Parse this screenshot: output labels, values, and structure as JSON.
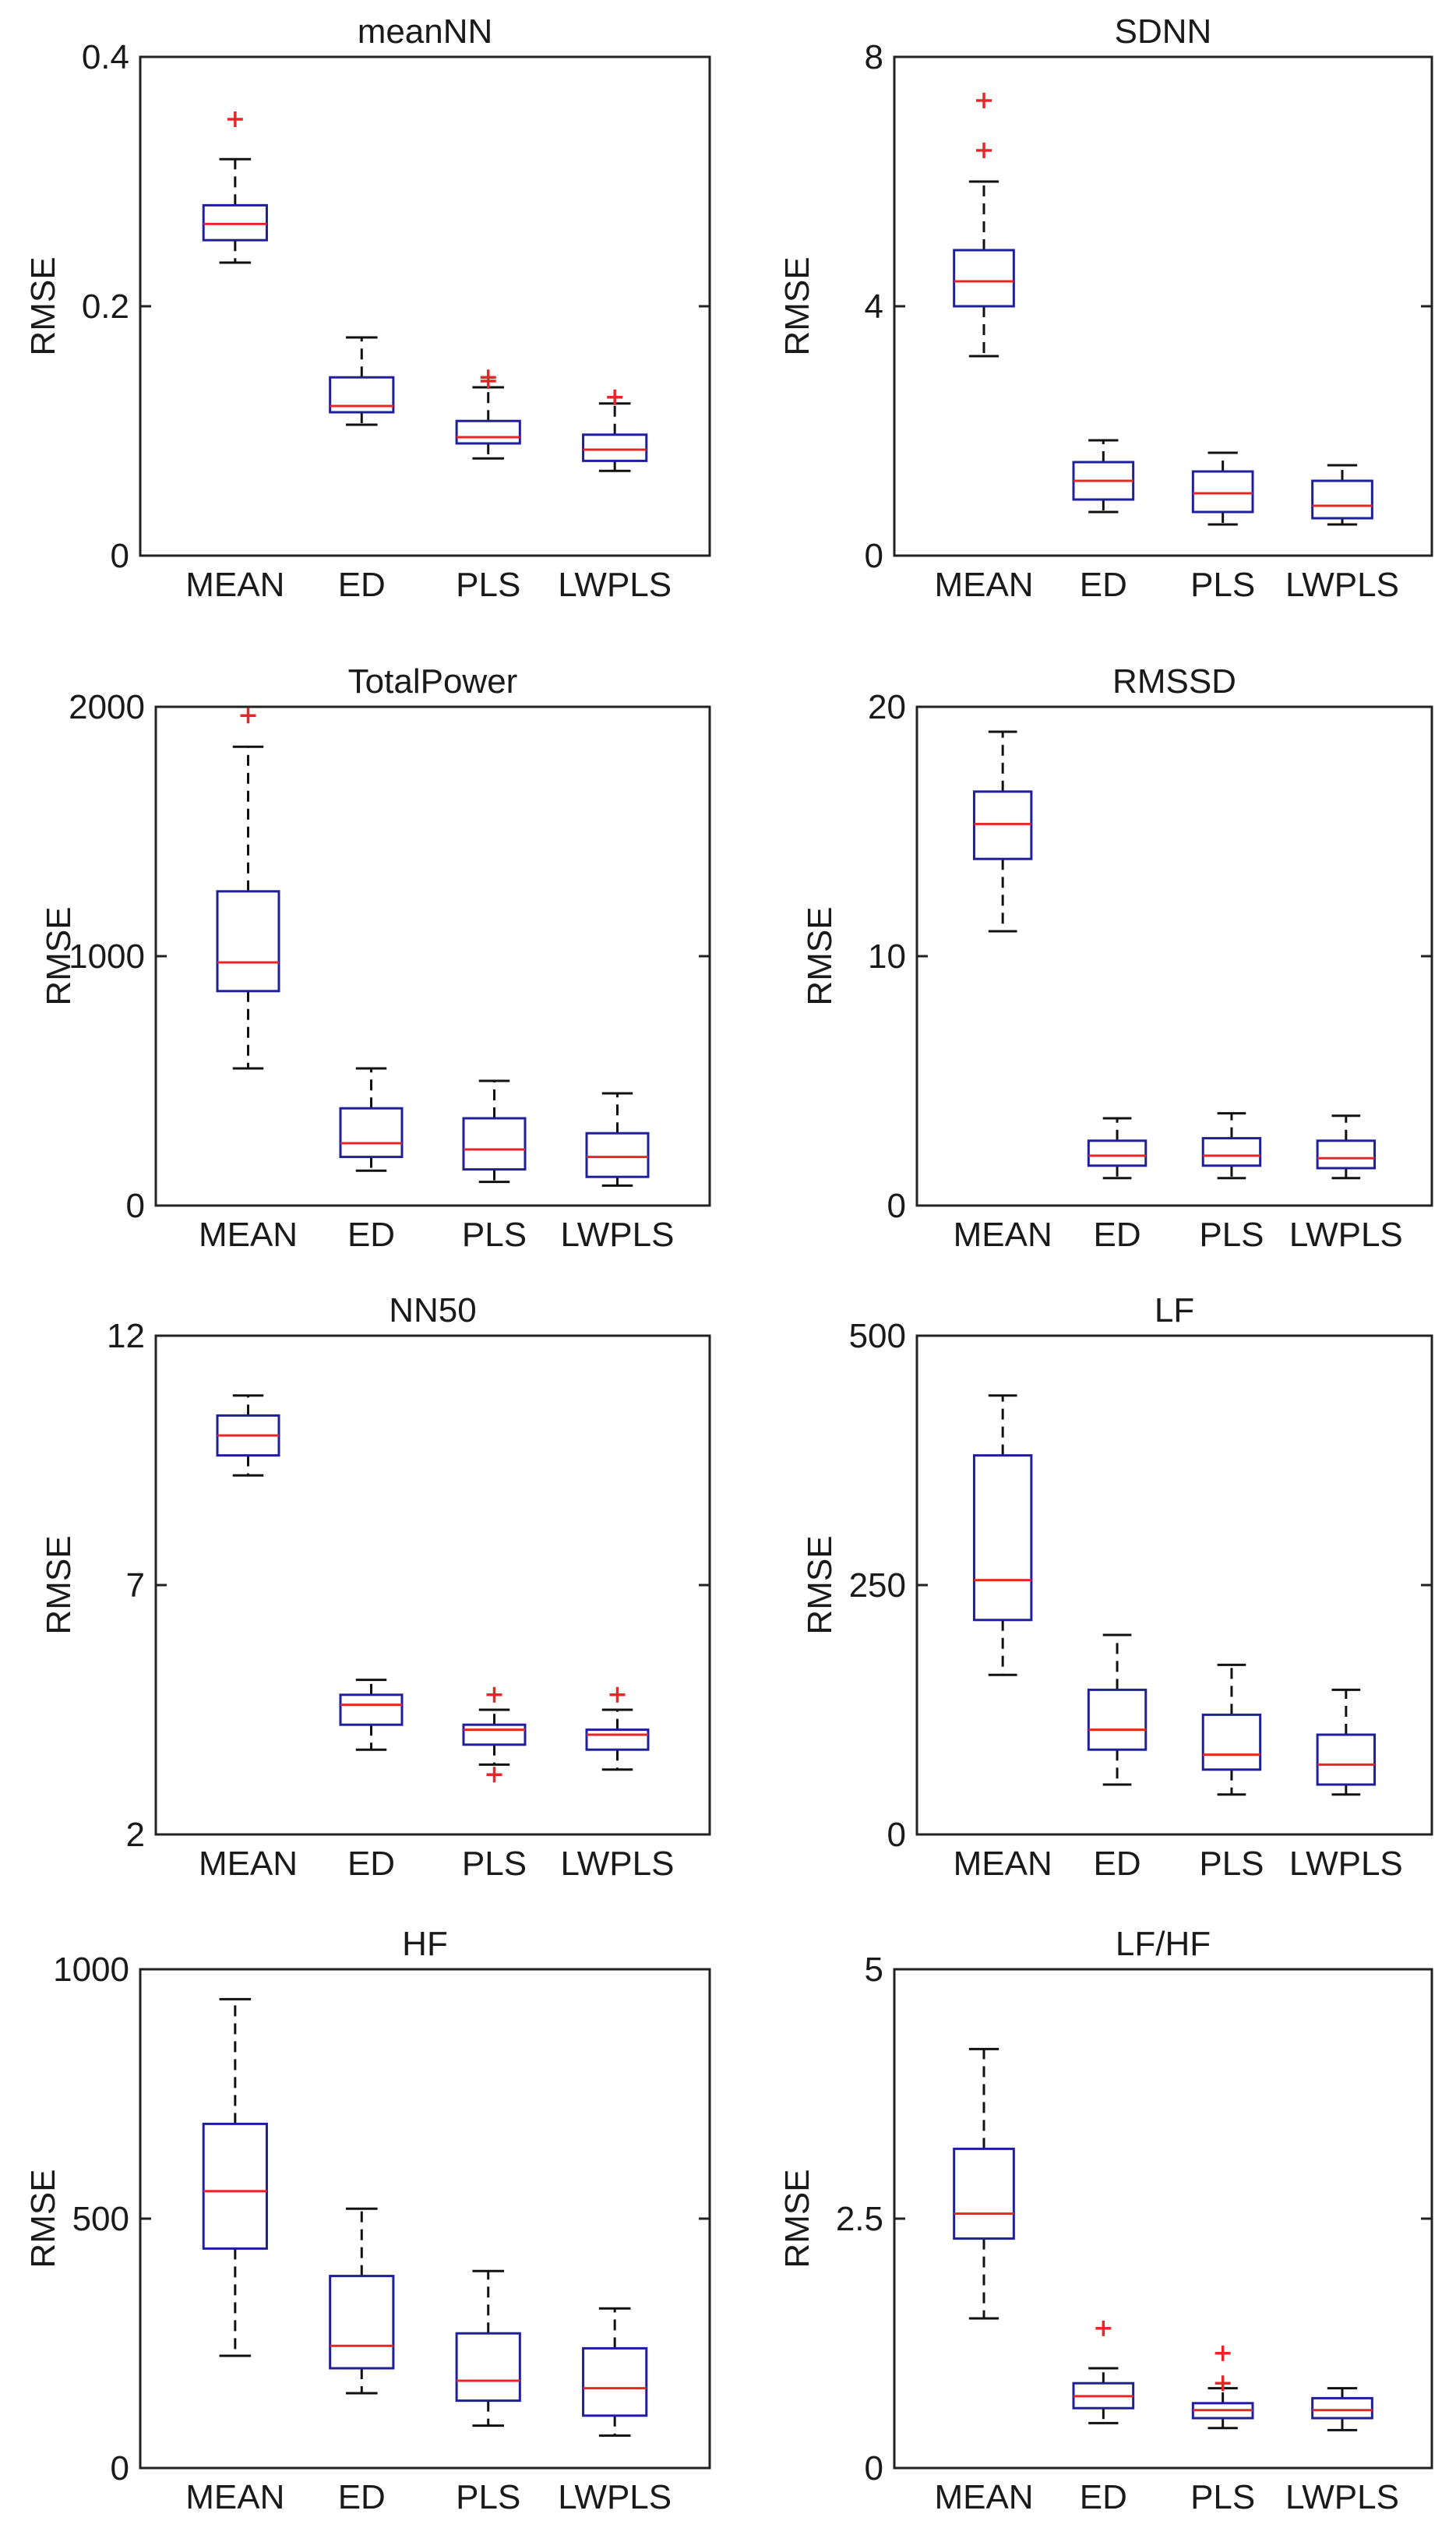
{
  "colors": {
    "box": "#1f1f9c",
    "median": "#e8262a",
    "outlier": "#e8262a",
    "whisker": "#111111",
    "axes": "#222222",
    "text": "#1a1a1a"
  },
  "chart_data": [
    {
      "type": "box",
      "title": "meanNN",
      "ylabel": "RMSE",
      "ylim": [
        0,
        0.4
      ],
      "yticks": [
        "0",
        "0.2",
        "0.4"
      ],
      "categories": [
        "MEAN",
        "ED",
        "PLS",
        "LWPLS"
      ],
      "boxes": [
        {
          "whisker_low": 0.235,
          "q1": 0.253,
          "median": 0.266,
          "q3": 0.281,
          "whisker_high": 0.318,
          "outliers": [
            0.35
          ]
        },
        {
          "whisker_low": 0.105,
          "q1": 0.115,
          "median": 0.12,
          "q3": 0.143,
          "whisker_high": 0.175,
          "outliers": []
        },
        {
          "whisker_low": 0.078,
          "q1": 0.09,
          "median": 0.095,
          "q3": 0.108,
          "whisker_high": 0.135,
          "outliers": [
            0.14,
            0.143
          ]
        },
        {
          "whisker_low": 0.068,
          "q1": 0.076,
          "median": 0.085,
          "q3": 0.097,
          "whisker_high": 0.122,
          "outliers": [
            0.127
          ]
        }
      ]
    },
    {
      "type": "box",
      "title": "SDNN",
      "ylabel": "RMSE",
      "ylim": [
        0,
        8
      ],
      "yticks": [
        "0",
        "4",
        "8"
      ],
      "categories": [
        "MEAN",
        "ED",
        "PLS",
        "LWPLS"
      ],
      "boxes": [
        {
          "whisker_low": 3.2,
          "q1": 4.0,
          "median": 4.4,
          "q3": 4.9,
          "whisker_high": 6.0,
          "outliers": [
            6.5,
            7.3
          ]
        },
        {
          "whisker_low": 0.7,
          "q1": 0.9,
          "median": 1.2,
          "q3": 1.5,
          "whisker_high": 1.85,
          "outliers": []
        },
        {
          "whisker_low": 0.5,
          "q1": 0.7,
          "median": 1.0,
          "q3": 1.35,
          "whisker_high": 1.65,
          "outliers": []
        },
        {
          "whisker_low": 0.5,
          "q1": 0.6,
          "median": 0.8,
          "q3": 1.2,
          "whisker_high": 1.45,
          "outliers": []
        }
      ]
    },
    {
      "type": "box",
      "title": "TotalPower",
      "ylabel": "RMSE",
      "ylim": [
        0,
        2000
      ],
      "yticks": [
        "0",
        "1000",
        "2000"
      ],
      "categories": [
        "MEAN",
        "ED",
        "PLS",
        "LWPLS"
      ],
      "boxes": [
        {
          "whisker_low": 550,
          "q1": 860,
          "median": 975,
          "q3": 1260,
          "whisker_high": 1840,
          "outliers": [
            1965
          ]
        },
        {
          "whisker_low": 140,
          "q1": 195,
          "median": 250,
          "q3": 390,
          "whisker_high": 550,
          "outliers": []
        },
        {
          "whisker_low": 95,
          "q1": 145,
          "median": 225,
          "q3": 350,
          "whisker_high": 500,
          "outliers": []
        },
        {
          "whisker_low": 80,
          "q1": 115,
          "median": 195,
          "q3": 290,
          "whisker_high": 450,
          "outliers": []
        }
      ]
    },
    {
      "type": "box",
      "title": "RMSSD",
      "ylabel": "RMSE",
      "ylim": [
        0,
        20
      ],
      "yticks": [
        "0",
        "10",
        "20"
      ],
      "categories": [
        "MEAN",
        "ED",
        "PLS",
        "LWPLS"
      ],
      "boxes": [
        {
          "whisker_low": 11.0,
          "q1": 13.9,
          "median": 15.3,
          "q3": 16.6,
          "whisker_high": 19.0,
          "outliers": []
        },
        {
          "whisker_low": 1.1,
          "q1": 1.6,
          "median": 2.0,
          "q3": 2.6,
          "whisker_high": 3.5,
          "outliers": []
        },
        {
          "whisker_low": 1.1,
          "q1": 1.6,
          "median": 2.0,
          "q3": 2.7,
          "whisker_high": 3.7,
          "outliers": []
        },
        {
          "whisker_low": 1.1,
          "q1": 1.5,
          "median": 1.9,
          "q3": 2.6,
          "whisker_high": 3.6,
          "outliers": []
        }
      ]
    },
    {
      "type": "box",
      "title": "NN50",
      "ylabel": "RMSE",
      "ylim": [
        2,
        12
      ],
      "yticks": [
        "2",
        "7",
        "12"
      ],
      "categories": [
        "MEAN",
        "ED",
        "PLS",
        "LWPLS"
      ],
      "boxes": [
        {
          "whisker_low": 9.2,
          "q1": 9.6,
          "median": 10.0,
          "q3": 10.4,
          "whisker_high": 10.8,
          "outliers": []
        },
        {
          "whisker_low": 3.7,
          "q1": 4.2,
          "median": 4.6,
          "q3": 4.8,
          "whisker_high": 5.1,
          "outliers": []
        },
        {
          "whisker_low": 3.4,
          "q1": 3.8,
          "median": 4.1,
          "q3": 4.2,
          "whisker_high": 4.5,
          "outliers": [
            3.2,
            4.8
          ]
        },
        {
          "whisker_low": 3.3,
          "q1": 3.7,
          "median": 4.0,
          "q3": 4.1,
          "whisker_high": 4.5,
          "outliers": [
            4.8
          ]
        }
      ]
    },
    {
      "type": "box",
      "title": "LF",
      "ylabel": "RMSE",
      "ylim": [
        0,
        500
      ],
      "yticks": [
        "0",
        "250",
        "500"
      ],
      "categories": [
        "MEAN",
        "ED",
        "PLS",
        "LWPLS"
      ],
      "boxes": [
        {
          "whisker_low": 160,
          "q1": 215,
          "median": 255,
          "q3": 380,
          "whisker_high": 440,
          "outliers": []
        },
        {
          "whisker_low": 50,
          "q1": 85,
          "median": 105,
          "q3": 145,
          "whisker_high": 200,
          "outliers": []
        },
        {
          "whisker_low": 40,
          "q1": 65,
          "median": 80,
          "q3": 120,
          "whisker_high": 170,
          "outliers": []
        },
        {
          "whisker_low": 40,
          "q1": 50,
          "median": 70,
          "q3": 100,
          "whisker_high": 145,
          "outliers": []
        }
      ]
    },
    {
      "type": "box",
      "title": "HF",
      "ylabel": "RMSE",
      "ylim": [
        0,
        1000
      ],
      "yticks": [
        "0",
        "500",
        "1000"
      ],
      "categories": [
        "MEAN",
        "ED",
        "PLS",
        "LWPLS"
      ],
      "boxes": [
        {
          "whisker_low": 225,
          "q1": 440,
          "median": 555,
          "q3": 690,
          "whisker_high": 940,
          "outliers": []
        },
        {
          "whisker_low": 150,
          "q1": 200,
          "median": 245,
          "q3": 385,
          "whisker_high": 520,
          "outliers": []
        },
        {
          "whisker_low": 85,
          "q1": 135,
          "median": 175,
          "q3": 270,
          "whisker_high": 395,
          "outliers": []
        },
        {
          "whisker_low": 65,
          "q1": 105,
          "median": 160,
          "q3": 240,
          "whisker_high": 320,
          "outliers": []
        }
      ]
    },
    {
      "type": "box",
      "title": "LF/HF",
      "ylabel": "RMSE",
      "ylim": [
        0,
        5
      ],
      "yticks": [
        "0",
        "2.5",
        "5"
      ],
      "categories": [
        "MEAN",
        "ED",
        "PLS",
        "LWPLS"
      ],
      "boxes": [
        {
          "whisker_low": 1.5,
          "q1": 2.3,
          "median": 2.55,
          "q3": 3.2,
          "whisker_high": 4.2,
          "outliers": []
        },
        {
          "whisker_low": 0.45,
          "q1": 0.6,
          "median": 0.72,
          "q3": 0.85,
          "whisker_high": 1.0,
          "outliers": [
            1.4
          ]
        },
        {
          "whisker_low": 0.4,
          "q1": 0.5,
          "median": 0.58,
          "q3": 0.65,
          "whisker_high": 0.8,
          "outliers": [
            0.85,
            1.15
          ]
        },
        {
          "whisker_low": 0.38,
          "q1": 0.5,
          "median": 0.58,
          "q3": 0.7,
          "whisker_high": 0.8,
          "outliers": []
        }
      ]
    }
  ]
}
